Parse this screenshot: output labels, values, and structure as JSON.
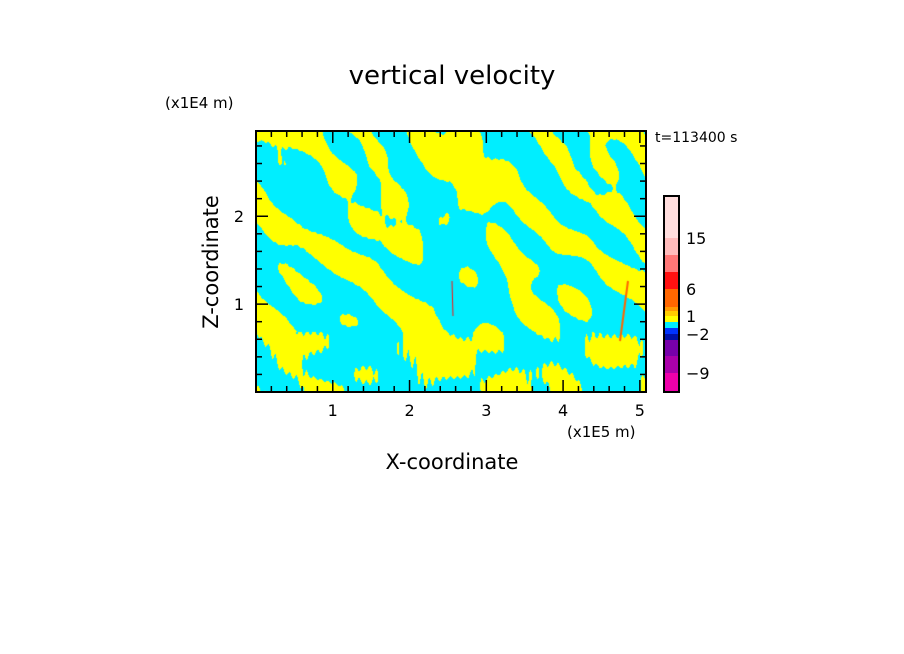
{
  "chart_data": {
    "type": "heatmap",
    "title": "vertical velocity",
    "xlabel": "X-coordinate",
    "ylabel": "Z-coordinate",
    "x_unit": "(x1E5 m)",
    "y_unit": "(x1E4 m)",
    "time_label": "t=113400 s",
    "xlim": [
      0,
      5.08
    ],
    "ylim": [
      0,
      2.97
    ],
    "x_ticks": [
      "1",
      "2",
      "3",
      "4",
      "5"
    ],
    "x_tick_values": [
      1,
      2,
      3,
      4,
      5
    ],
    "y_ticks": [
      "1",
      "2"
    ],
    "y_tick_values": [
      1,
      2
    ],
    "minor_tick_step": 0.2,
    "grid": false,
    "colorbar": {
      "levels": [
        -12,
        -9,
        -6,
        -3,
        -2,
        -1,
        0,
        1,
        2,
        3,
        6,
        9,
        12,
        15,
        18
      ],
      "colors": [
        "#ee00aa",
        "#aa00aa",
        "#7700aa",
        "#0011aa",
        "#0033ff",
        "#00eeff",
        "#ffff00",
        "#ffcc00",
        "#ff9900",
        "#ff6600",
        "#ff1111",
        "#ff7777",
        "#ffbbbb",
        "#ffdddd"
      ],
      "tick_labels": [
        "-9",
        "-2",
        "1",
        "6",
        "15"
      ],
      "tick_values": [
        -9,
        -2,
        1,
        6,
        15
      ]
    },
    "dominant_colors": {
      "negative_small": "#00eeff",
      "positive_small": "#ffff00"
    }
  }
}
